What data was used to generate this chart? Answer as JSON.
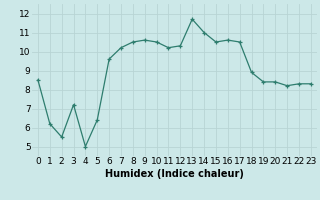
{
  "x": [
    0,
    1,
    2,
    3,
    4,
    5,
    6,
    7,
    8,
    9,
    10,
    11,
    12,
    13,
    14,
    15,
    16,
    17,
    18,
    19,
    20,
    21,
    22,
    23
  ],
  "y": [
    8.5,
    6.2,
    5.5,
    7.2,
    5.0,
    6.4,
    9.6,
    10.2,
    10.5,
    10.6,
    10.5,
    10.2,
    10.3,
    11.7,
    11.0,
    10.5,
    10.6,
    10.5,
    8.9,
    8.4,
    8.4,
    8.2,
    8.3,
    8.3
  ],
  "xlabel": "Humidex (Indice chaleur)",
  "ylim": [
    4.5,
    12.5
  ],
  "xlim": [
    -0.5,
    23.5
  ],
  "yticks": [
    5,
    6,
    7,
    8,
    9,
    10,
    11,
    12
  ],
  "xticks": [
    0,
    1,
    2,
    3,
    4,
    5,
    6,
    7,
    8,
    9,
    10,
    11,
    12,
    13,
    14,
    15,
    16,
    17,
    18,
    19,
    20,
    21,
    22,
    23
  ],
  "line_color": "#2e7d6e",
  "marker": "+",
  "bg_color": "#cce8e8",
  "grid_color": "#b8d4d4",
  "xlabel_fontsize": 7,
  "tick_fontsize": 6.5
}
